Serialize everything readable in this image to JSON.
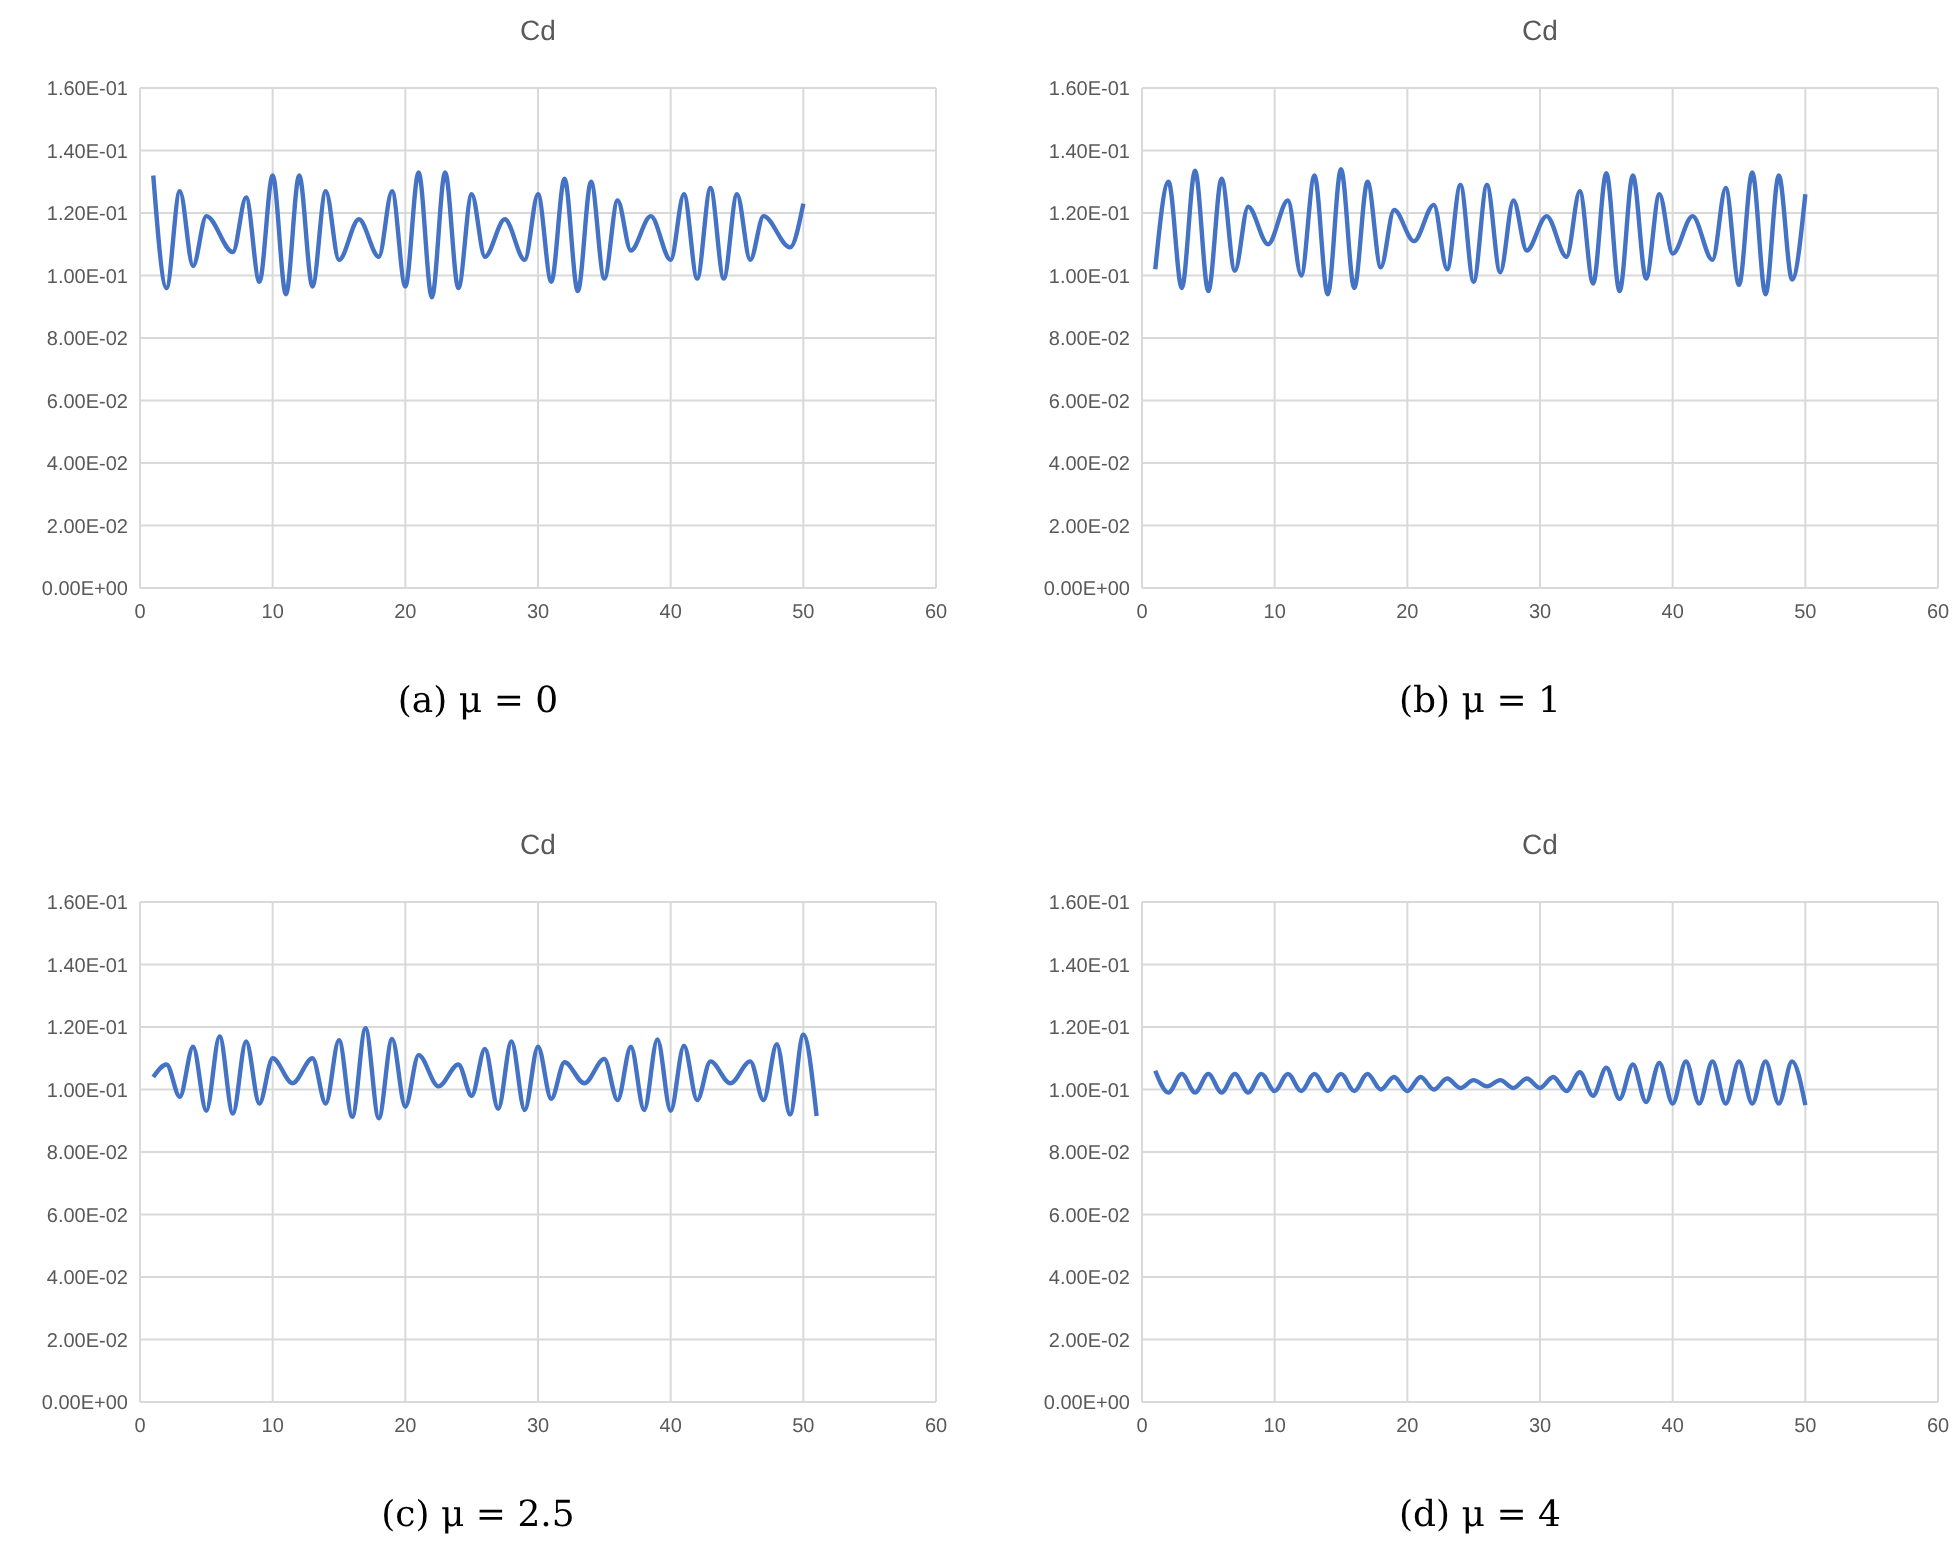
{
  "chart_data": [
    {
      "type": "line",
      "title": "Cd",
      "annotations": [
        "(a) μ = 0"
      ],
      "grid": true,
      "xlim": [
        0,
        60
      ],
      "xticks": [
        0,
        10,
        20,
        30,
        40,
        50,
        60
      ],
      "ylim": [
        0,
        0.16
      ],
      "yticks": [
        {
          "value": 0,
          "label": "0.00E+00"
        },
        {
          "value": 0.02,
          "label": "2.00E-02"
        },
        {
          "value": 0.04,
          "label": "4.00E-02"
        },
        {
          "value": 0.06,
          "label": "6.00E-02"
        },
        {
          "value": 0.08,
          "label": "8.00E-02"
        },
        {
          "value": 0.1,
          "label": "1.00E-01"
        },
        {
          "value": 0.12,
          "label": "1.20E-01"
        },
        {
          "value": 0.14,
          "label": "1.40E-01"
        },
        {
          "value": 0.16,
          "label": "1.60E-01"
        }
      ],
      "series": [
        {
          "color": "#4472c4",
          "x": [
            1,
            2,
            3,
            4,
            5,
            7,
            8,
            9,
            10,
            11,
            12,
            13,
            14,
            15,
            16.5,
            18,
            19,
            20,
            21,
            22,
            23,
            24,
            25,
            26,
            27.5,
            29,
            30,
            31,
            32,
            33,
            34,
            35,
            36,
            37,
            38.5,
            40,
            41,
            42,
            43,
            44,
            45,
            46,
            47,
            49,
            50
          ],
          "values": [
            0.132,
            0.096,
            0.127,
            0.103,
            0.119,
            0.1075,
            0.125,
            0.098,
            0.132,
            0.094,
            0.132,
            0.0965,
            0.127,
            0.105,
            0.118,
            0.106,
            0.127,
            0.0965,
            0.133,
            0.093,
            0.133,
            0.096,
            0.126,
            0.106,
            0.118,
            0.105,
            0.126,
            0.098,
            0.131,
            0.095,
            0.13,
            0.099,
            0.124,
            0.108,
            0.119,
            0.105,
            0.126,
            0.099,
            0.128,
            0.099,
            0.126,
            0.105,
            0.119,
            0.109,
            0.123
          ]
        }
      ]
    },
    {
      "type": "line",
      "title": "Cd",
      "annotations": [
        "(b) μ = 1"
      ],
      "grid": true,
      "xlim": [
        0,
        60
      ],
      "xticks": [
        0,
        10,
        20,
        30,
        40,
        50,
        60
      ],
      "ylim": [
        0,
        0.16
      ],
      "yticks": [
        {
          "value": 0,
          "label": "0.00E+00"
        },
        {
          "value": 0.02,
          "label": "2.00E-02"
        },
        {
          "value": 0.04,
          "label": "4.00E-02"
        },
        {
          "value": 0.06,
          "label": "6.00E-02"
        },
        {
          "value": 0.08,
          "label": "8.00E-02"
        },
        {
          "value": 0.1,
          "label": "1.00E-01"
        },
        {
          "value": 0.12,
          "label": "1.20E-01"
        },
        {
          "value": 0.14,
          "label": "1.40E-01"
        },
        {
          "value": 0.16,
          "label": "1.60E-01"
        }
      ],
      "series": [
        {
          "color": "#4472c4",
          "x": [
            1,
            2,
            3,
            4,
            5,
            6,
            7,
            8,
            9.5,
            11,
            12,
            13,
            14,
            15,
            16,
            17,
            18,
            19,
            20.5,
            22,
            23,
            24,
            25,
            26,
            27,
            28,
            29,
            30.5,
            32,
            33,
            34,
            35,
            36,
            37,
            38,
            39,
            40,
            41.5,
            43,
            44,
            45,
            46,
            47,
            48,
            49,
            50
          ],
          "values": [
            0.102,
            0.13,
            0.096,
            0.1335,
            0.095,
            0.131,
            0.1015,
            0.122,
            0.11,
            0.124,
            0.1,
            0.132,
            0.094,
            0.134,
            0.096,
            0.13,
            0.1026,
            0.121,
            0.111,
            0.1226,
            0.102,
            0.129,
            0.098,
            0.129,
            0.101,
            0.124,
            0.108,
            0.119,
            0.106,
            0.127,
            0.0974,
            0.1327,
            0.095,
            0.132,
            0.099,
            0.126,
            0.107,
            0.119,
            0.105,
            0.128,
            0.097,
            0.133,
            0.094,
            0.132,
            0.0987,
            0.126
          ]
        }
      ]
    },
    {
      "type": "line",
      "title": "Cd",
      "annotations": [
        "(c) μ = 2.5"
      ],
      "grid": true,
      "xlim": [
        0,
        60
      ],
      "xticks": [
        0,
        10,
        20,
        30,
        40,
        50,
        60
      ],
      "ylim": [
        0,
        0.16
      ],
      "yticks": [
        {
          "value": 0,
          "label": "0.00E+00"
        },
        {
          "value": 0.02,
          "label": "2.00E-02"
        },
        {
          "value": 0.04,
          "label": "4.00E-02"
        },
        {
          "value": 0.06,
          "label": "6.00E-02"
        },
        {
          "value": 0.08,
          "label": "8.00E-02"
        },
        {
          "value": 0.1,
          "label": "1.00E-01"
        },
        {
          "value": 0.12,
          "label": "1.20E-01"
        },
        {
          "value": 0.14,
          "label": "1.40E-01"
        },
        {
          "value": 0.16,
          "label": "1.60E-01"
        }
      ],
      "series": [
        {
          "color": "#4472c4",
          "x": [
            1,
            2,
            3,
            4,
            5,
            6,
            7,
            8,
            9,
            10,
            11.5,
            13,
            14,
            15,
            16,
            17,
            18,
            19,
            20,
            21,
            22.5,
            24,
            25,
            26,
            27,
            28,
            29,
            30,
            31,
            32,
            33.5,
            35,
            36,
            37,
            38,
            39,
            40,
            41,
            42,
            43,
            44.5,
            46,
            47,
            48,
            49,
            50,
            51
          ],
          "values": [
            0.104,
            0.108,
            0.0977,
            0.1137,
            0.0932,
            0.117,
            0.0923,
            0.1154,
            0.0955,
            0.11,
            0.102,
            0.11,
            0.0955,
            0.1158,
            0.0913,
            0.1196,
            0.0908,
            0.1162,
            0.0945,
            0.111,
            0.101,
            0.108,
            0.098,
            0.113,
            0.0938,
            0.1154,
            0.0934,
            0.1137,
            0.097,
            0.1087,
            0.102,
            0.1098,
            0.0966,
            0.1137,
            0.0934,
            0.116,
            0.0932,
            0.114,
            0.0966,
            0.109,
            0.102,
            0.109,
            0.0966,
            0.1145,
            0.092,
            0.1175,
            0.0915
          ]
        }
      ]
    },
    {
      "type": "line",
      "title": "Cd",
      "annotations": [
        "(d) μ = 4"
      ],
      "grid": true,
      "xlim": [
        0,
        60
      ],
      "xticks": [
        0,
        10,
        20,
        30,
        40,
        50,
        60
      ],
      "ylim": [
        0,
        0.16
      ],
      "yticks": [
        {
          "value": 0,
          "label": "0.00E+00"
        },
        {
          "value": 0.02,
          "label": "2.00E-02"
        },
        {
          "value": 0.04,
          "label": "4.00E-02"
        },
        {
          "value": 0.06,
          "label": "6.00E-02"
        },
        {
          "value": 0.08,
          "label": "8.00E-02"
        },
        {
          "value": 0.1,
          "label": "1.00E-01"
        },
        {
          "value": 0.12,
          "label": "1.20E-01"
        },
        {
          "value": 0.14,
          "label": "1.40E-01"
        },
        {
          "value": 0.16,
          "label": "1.60E-01"
        }
      ],
      "series": [
        {
          "color": "#4472c4",
          "x": [
            1,
            2,
            3,
            4,
            5,
            6,
            7,
            8,
            9,
            10,
            11,
            12,
            13,
            14,
            15,
            16,
            17,
            18,
            19,
            20,
            21,
            22,
            23,
            24,
            25,
            26,
            27,
            28,
            29,
            30,
            31,
            32,
            33,
            34,
            35,
            36,
            37,
            38,
            39,
            40,
            41,
            42,
            43,
            44,
            45,
            46,
            47,
            48,
            49,
            50
          ],
          "values": [
            0.106,
            0.099,
            0.105,
            0.099,
            0.105,
            0.099,
            0.105,
            0.099,
            0.105,
            0.0995,
            0.105,
            0.0995,
            0.105,
            0.0995,
            0.105,
            0.0995,
            0.105,
            0.1,
            0.104,
            0.0995,
            0.104,
            0.1,
            0.1035,
            0.1005,
            0.103,
            0.101,
            0.103,
            0.1005,
            0.1035,
            0.1005,
            0.104,
            0.0995,
            0.1055,
            0.098,
            0.107,
            0.097,
            0.108,
            0.096,
            0.1085,
            0.0955,
            0.109,
            0.0955,
            0.109,
            0.0955,
            0.109,
            0.0955,
            0.109,
            0.0955,
            0.109,
            0.095
          ]
        }
      ]
    }
  ]
}
